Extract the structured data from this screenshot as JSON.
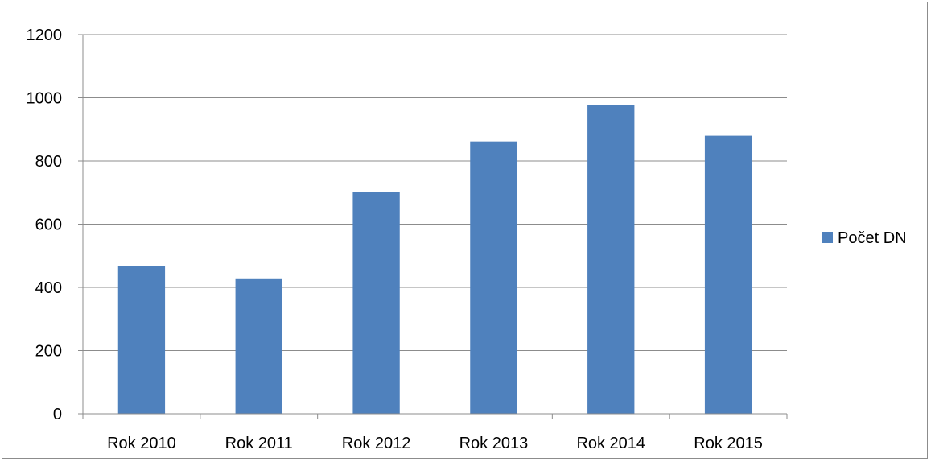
{
  "chart_data": {
    "type": "bar",
    "categories": [
      "Rok 2010",
      "Rok 2011",
      "Rok 2012",
      "Rok 2013",
      "Rok 2014",
      "Rok 2015"
    ],
    "series": [
      {
        "name": "Počet DN",
        "values": [
          467,
          426,
          702,
          862,
          977,
          880
        ],
        "color": "#4f81bd"
      }
    ],
    "title": "",
    "xlabel": "",
    "ylabel": "",
    "ylim": [
      0,
      1200
    ],
    "yticks": [
      0,
      200,
      400,
      600,
      800,
      1000,
      1200
    ],
    "grid": true,
    "legend_position": "right"
  }
}
